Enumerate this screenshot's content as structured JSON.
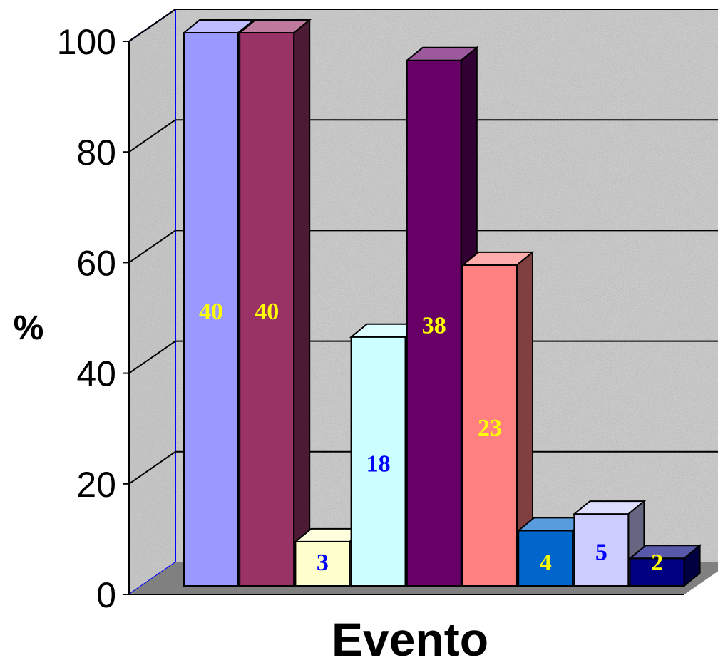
{
  "chart_data": {
    "type": "bar",
    "title": "",
    "xlabel": "Evento",
    "ylabel": "%",
    "ylim": [
      0,
      100
    ],
    "yticks": [
      0,
      20,
      40,
      60,
      80,
      100
    ],
    "grid": true,
    "three_d": true,
    "bars": [
      {
        "value": 100,
        "label": "40",
        "color": "#9999ff",
        "label_color": "#ffff00"
      },
      {
        "value": 100,
        "label": "40",
        "color": "#993366",
        "label_color": "#ffff00"
      },
      {
        "value": 8,
        "label": "3",
        "color": "#ffffcc",
        "label_color": "#0000ff"
      },
      {
        "value": 45,
        "label": "18",
        "color": "#ccffff",
        "label_color": "#0000ff"
      },
      {
        "value": 95,
        "label": "38",
        "color": "#660066",
        "label_color": "#ffff00"
      },
      {
        "value": 58,
        "label": "23",
        "color": "#ff8080",
        "label_color": "#ffff00"
      },
      {
        "value": 10,
        "label": "4",
        "color": "#0066cc",
        "label_color": "#ffff00"
      },
      {
        "value": 13,
        "label": "5",
        "color": "#ccccff",
        "label_color": "#0000ff"
      },
      {
        "value": 5,
        "label": "2",
        "color": "#000080",
        "label_color": "#ffff00"
      }
    ]
  }
}
